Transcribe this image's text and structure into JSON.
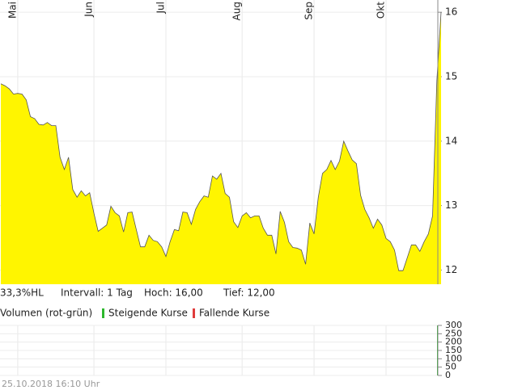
{
  "chart_data": [
    {
      "type": "area",
      "color": "#fff500",
      "line_color": "#555555",
      "categories": [
        null,
        null,
        null,
        null,
        "Mai",
        null,
        null,
        null,
        null,
        null,
        null,
        null,
        null,
        null,
        null,
        null,
        null,
        null,
        null,
        null,
        null,
        null,
        "Jun",
        null,
        null,
        null,
        null,
        null,
        null,
        null,
        null,
        null,
        null,
        null,
        null,
        null,
        null,
        null,
        null,
        "Jul",
        null,
        null,
        null,
        null,
        null,
        null,
        null,
        null,
        null,
        null,
        null,
        null,
        null,
        null,
        null,
        null,
        null,
        "Aug",
        null,
        null,
        null,
        null,
        null,
        null,
        null,
        null,
        null,
        null,
        null,
        null,
        null,
        null,
        null,
        null,
        "Sep",
        null,
        null,
        null,
        null,
        null,
        null,
        null,
        null,
        null,
        null,
        null,
        null,
        null,
        null,
        null,
        null,
        "Okt",
        null,
        null,
        null,
        null,
        null,
        null,
        null,
        null,
        null,
        null,
        null,
        null,
        null
      ],
      "series": [
        {
          "values": [
            14.89,
            14.86,
            14.81,
            14.73,
            14.74,
            14.73,
            14.64,
            14.38,
            14.35,
            14.26,
            14.25,
            14.29,
            14.24,
            14.24,
            13.75,
            13.56,
            13.75,
            13.25,
            13.13,
            13.23,
            13.15,
            13.2,
            12.88,
            12.6,
            12.65,
            12.7,
            12.99,
            12.89,
            12.84,
            12.59,
            12.89,
            12.9,
            12.63,
            12.36,
            12.36,
            12.54,
            12.46,
            12.44,
            12.36,
            12.21,
            12.44,
            12.63,
            12.61,
            12.9,
            12.89,
            12.71,
            12.94,
            13.06,
            13.15,
            13.13,
            13.46,
            13.41,
            13.5,
            13.19,
            13.13,
            12.75,
            12.66,
            12.84,
            12.89,
            12.81,
            12.84,
            12.84,
            12.65,
            12.54,
            12.54,
            12.25,
            12.91,
            12.74,
            12.44,
            12.35,
            12.34,
            12.31,
            12.09,
            12.73,
            12.56,
            13.13,
            13.5,
            13.56,
            13.7,
            13.56,
            13.69,
            14.0,
            13.85,
            13.71,
            13.65,
            13.16,
            12.94,
            12.81,
            12.65,
            12.79,
            12.7,
            12.49,
            12.44,
            12.31,
            11.99,
            11.99,
            12.19,
            12.39,
            12.39,
            12.29,
            12.44,
            12.56,
            12.84,
            14.94,
            16.0
          ]
        }
      ],
      "ylim": [
        11.78,
        16.19
      ],
      "yticks": [
        12,
        13,
        14,
        15,
        16
      ],
      "grid": true,
      "stats": [
        "33,3%HL",
        "Intervall: 1 Tag",
        "Hoch: 16,00",
        "Tief: 12,00"
      ]
    },
    {
      "type": "bar",
      "title": "Volumen (rot-grün)",
      "series": [
        {
          "name": "Steigende Kurse",
          "color": "#2db82d",
          "values": [
            0,
            0,
            0,
            0,
            0,
            0,
            0,
            0,
            0,
            0,
            0,
            0,
            0,
            0,
            0,
            0,
            0,
            0,
            0,
            0,
            0,
            0,
            0,
            0,
            0,
            0,
            0,
            0,
            0,
            0,
            0,
            0,
            0,
            0,
            0,
            0,
            0,
            0,
            0,
            0,
            0,
            0,
            0,
            0,
            0,
            0,
            0,
            0,
            0,
            0,
            0,
            0,
            0,
            0,
            0,
            0,
            0,
            0,
            0,
            0,
            0,
            0,
            0,
            0,
            0,
            0,
            0,
            0,
            0,
            0,
            0,
            0,
            0,
            0,
            0,
            0,
            0,
            0,
            0,
            0,
            0,
            0,
            0,
            0,
            0,
            0,
            0,
            0,
            0,
            0,
            0,
            0,
            0,
            0,
            0,
            0,
            0,
            0,
            0,
            0,
            0,
            0,
            0,
            0,
            300
          ]
        },
        {
          "name": "Fallende Kurse",
          "color": "#e03c3c",
          "values": [
            0,
            0,
            0,
            0,
            0,
            0,
            0,
            0,
            0,
            0,
            0,
            0,
            0,
            0,
            0,
            0,
            0,
            0,
            0,
            0,
            0,
            0,
            0,
            0,
            0,
            0,
            0,
            0,
            0,
            0,
            0,
            0,
            0,
            0,
            0,
            0,
            0,
            0,
            0,
            0,
            0,
            0,
            0,
            0,
            0,
            0,
            0,
            0,
            0,
            0,
            0,
            0,
            0,
            0,
            0,
            0,
            0,
            0,
            0,
            0,
            0,
            0,
            0,
            0,
            0,
            0,
            0,
            0,
            0,
            0,
            0,
            0,
            0,
            0,
            0,
            0,
            0,
            0,
            0,
            0,
            0,
            0,
            0,
            0,
            0,
            0,
            0,
            0,
            0,
            0,
            0,
            0,
            0,
            0,
            0,
            0,
            0,
            0,
            0,
            0,
            0,
            0,
            0,
            0,
            0
          ]
        }
      ],
      "ylim": [
        0,
        300
      ],
      "yticks": [
        0,
        50,
        100,
        150,
        200,
        250,
        300
      ],
      "grid": true
    }
  ],
  "footer": "25.10.2018 16:10 Uhr"
}
